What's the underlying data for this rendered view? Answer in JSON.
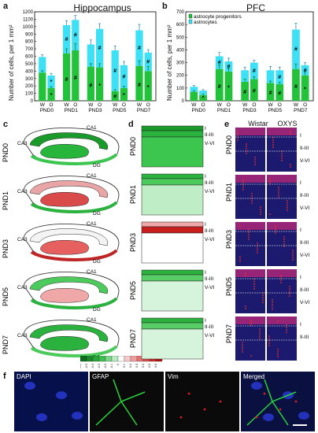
{
  "panels": {
    "a": "a",
    "b": "b",
    "c": "c",
    "d": "d",
    "e": "e",
    "f": "f"
  },
  "colors": {
    "green": "#22c33a",
    "cyan": "#3ee0f5",
    "pink": "#f0a7a7",
    "red": "#e33b3b",
    "dark_green": "#1a9a2b"
  },
  "chart_data": [
    {
      "type": "bar",
      "title": "Hippocampus",
      "ylabel": "Number of cells, per 1 mm²",
      "ylim": [
        0,
        1200
      ],
      "yticks": [
        "0",
        "100",
        "200",
        "300",
        "400",
        "500",
        "600",
        "700",
        "800",
        "900",
        "1000",
        "1100",
        "1200"
      ],
      "categories": [
        "PND0",
        "PND1",
        "PND3",
        "PND5",
        "PND7"
      ],
      "bar_labels": [
        "W",
        "O"
      ],
      "series": [
        {
          "name": "astrocyte progenitors",
          "values": [
            [
              380,
              170
            ],
            [
              640,
              680
            ],
            [
              460,
              450
            ],
            [
              130,
              170
            ],
            [
              470,
              400
            ]
          ],
          "errors": [
            [
              25,
              20
            ],
            [
              60,
              90
            ],
            [
              40,
              50
            ],
            [
              20,
              25
            ],
            [
              70,
              60
            ]
          ]
        },
        {
          "name": "astrocytes",
          "values": [
            [
              210,
              170
            ],
            [
              380,
              410
            ],
            [
              300,
              520
            ],
            [
              550,
              310
            ],
            [
              480,
              250
            ]
          ],
          "errors": [
            [
              30,
              30
            ],
            [
              60,
              60
            ],
            [
              60,
              70
            ],
            [
              60,
              50
            ],
            [
              80,
              40
            ]
          ]
        }
      ],
      "annotations": [
        {
          "cat": "PND0",
          "bar": "O",
          "marks": [
            "*",
            "*"
          ]
        },
        {
          "cat": "PND1",
          "bar": "W",
          "marks": [
            "#",
            "#"
          ]
        },
        {
          "cat": "PND1",
          "bar": "O",
          "marks": [
            "#",
            "#"
          ]
        },
        {
          "cat": "PND3",
          "bar": "W",
          "marks": [
            "#"
          ]
        },
        {
          "cat": "PND3",
          "bar": "O",
          "marks": [
            "*",
            "#"
          ]
        },
        {
          "cat": "PND5",
          "bar": "W",
          "marks": [
            "#",
            "#"
          ]
        },
        {
          "cat": "PND5",
          "bar": "O",
          "marks": [
            "*",
            "#"
          ]
        },
        {
          "cat": "PND7",
          "bar": "W",
          "marks": [
            "#",
            "#"
          ]
        },
        {
          "cat": "PND7",
          "bar": "O",
          "marks": [
            "*",
            "#"
          ]
        }
      ]
    },
    {
      "type": "bar",
      "title": "PFC",
      "ylabel": "Number of cells, per 1 mm²",
      "ylim": [
        0,
        700
      ],
      "yticks": [
        "0",
        "100",
        "200",
        "300",
        "400",
        "500",
        "600",
        "700"
      ],
      "categories": [
        "PND0",
        "PND1",
        "PND3",
        "PND5",
        "PND7"
      ],
      "bar_labels": [
        "W",
        "O"
      ],
      "legend": [
        "astrocyte progenitors",
        "astrocytes"
      ],
      "legend_position": "top-left",
      "series": [
        {
          "name": "astrocyte progenitors",
          "values": [
            [
              70,
              45
            ],
            [
              250,
              230
            ],
            [
              150,
              170
            ],
            [
              140,
              130
            ],
            [
              250,
              200
            ]
          ],
          "errors": [
            [
              8,
              6
            ],
            [
              30,
              25
            ],
            [
              20,
              20
            ],
            [
              15,
              15
            ],
            [
              40,
              30
            ]
          ]
        },
        {
          "name": "astrocytes",
          "values": [
            [
              40,
              35
            ],
            [
              100,
              80
            ],
            [
              90,
              130
            ],
            [
              100,
              110
            ],
            [
              310,
              80
            ]
          ],
          "errors": [
            [
              10,
              8
            ],
            [
              30,
              25
            ],
            [
              25,
              20
            ],
            [
              30,
              25
            ],
            [
              50,
              20
            ]
          ]
        }
      ],
      "annotations": [
        {
          "cat": "PND0",
          "bar": "O",
          "marks": [
            "*"
          ]
        },
        {
          "cat": "PND1",
          "bar": "W",
          "marks": [
            "#",
            "#"
          ]
        },
        {
          "cat": "PND1",
          "bar": "O",
          "marks": [
            "*",
            "#"
          ]
        },
        {
          "cat": "PND3",
          "bar": "W",
          "marks": [
            "#"
          ]
        },
        {
          "cat": "PND3",
          "bar": "O",
          "marks": [
            "#",
            "#"
          ]
        },
        {
          "cat": "PND5",
          "bar": "W",
          "marks": [
            "#"
          ]
        },
        {
          "cat": "PND5",
          "bar": "O",
          "marks": [
            "#",
            "#"
          ]
        },
        {
          "cat": "PND7",
          "bar": "W",
          "marks": [
            "#",
            "#"
          ]
        },
        {
          "cat": "PND7",
          "bar": "O",
          "marks": [
            "*",
            "#"
          ]
        }
      ]
    },
    {
      "type": "heatmap",
      "scale_labels": [
        "-0.6",
        "-0.5",
        "-0.4",
        "-0.3",
        "-0.2",
        "-0.1",
        "0",
        "0.1",
        "0.2",
        "0.3",
        "0.4",
        "0.5",
        "0.6"
      ]
    }
  ],
  "rows": [
    "PND0",
    "PND1",
    "PND3",
    "PND5",
    "PND7"
  ],
  "hippo_labels": {
    "ca1": "CA1",
    "ca3": "CA3",
    "dg": "DG"
  },
  "cortex_layers": {
    "l1": "I",
    "l2": "II-III",
    "l3": "V-VI"
  },
  "micro_cols": {
    "left": "Wistar",
    "right": "OXYS"
  },
  "micro_layers": {
    "l1": "I",
    "l2": "II-III",
    "l3": "V-VI"
  },
  "f_panels": [
    "DAPI",
    "GFAP",
    "Vim",
    "Merged"
  ]
}
